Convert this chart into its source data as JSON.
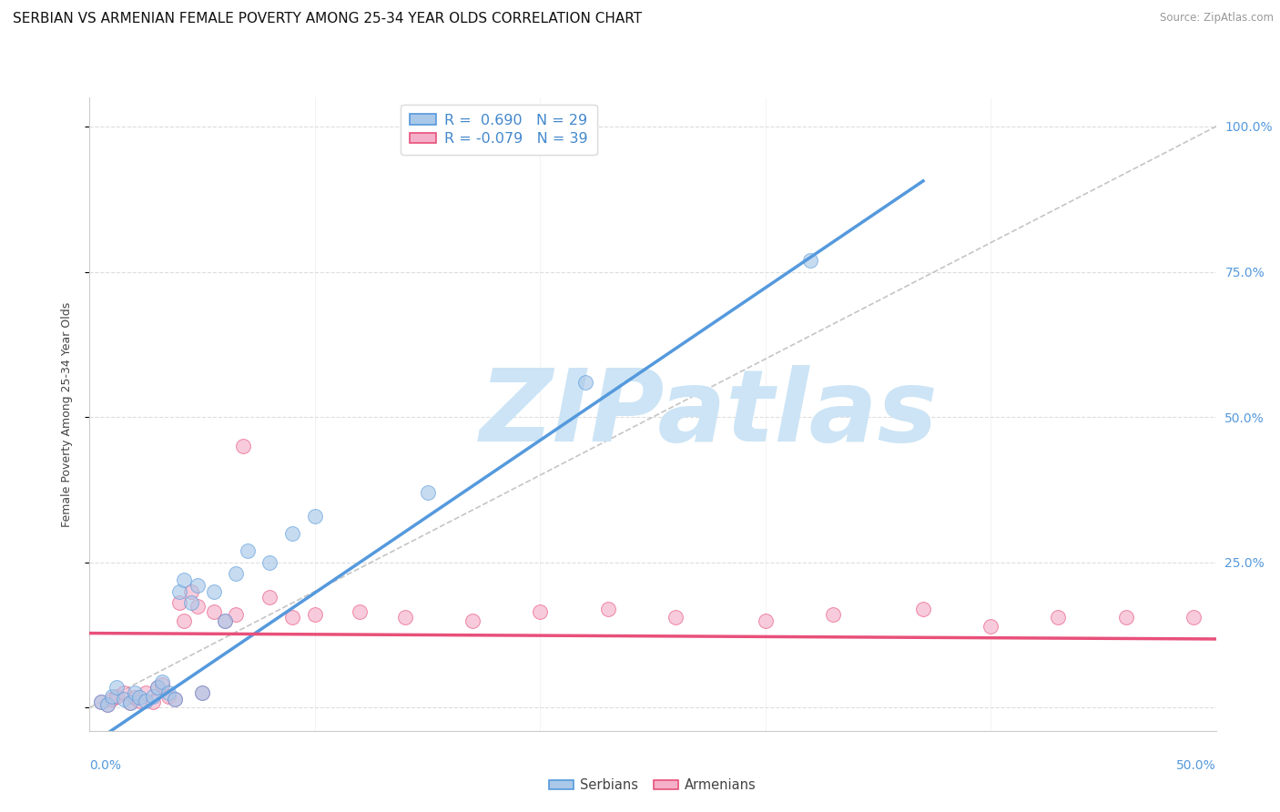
{
  "title": "SERBIAN VS ARMENIAN FEMALE POVERTY AMONG 25-34 YEAR OLDS CORRELATION CHART",
  "source": "Source: ZipAtlas.com",
  "ylabel": "Female Poverty Among 25-34 Year Olds",
  "xlim": [
    0.0,
    0.5
  ],
  "ylim": [
    -0.04,
    1.05
  ],
  "yticks": [
    0.0,
    0.25,
    0.5,
    0.75,
    1.0
  ],
  "ytick_labels": [
    "",
    "25.0%",
    "50.0%",
    "75.0%",
    "100.0%"
  ],
  "serbian_color": "#aac8e8",
  "armenian_color": "#f4b0c8",
  "serbian_line_color": "#5599dd",
  "armenian_line_color": "#e8507a",
  "ref_line_color": "#bbbbbb",
  "watermark_color": "#cce4f5",
  "watermark_text": "ZIPatlas",
  "legend_R_serbian": "0.690",
  "legend_N_serbian": "29",
  "legend_R_armenian": "-0.079",
  "legend_N_armenian": "39",
  "serbian_x": [
    0.005,
    0.008,
    0.01,
    0.012,
    0.015,
    0.018,
    0.02,
    0.022,
    0.025,
    0.028,
    0.03,
    0.032,
    0.035,
    0.038,
    0.04,
    0.042,
    0.045,
    0.048,
    0.05,
    0.055,
    0.06,
    0.065,
    0.07,
    0.08,
    0.09,
    0.1,
    0.15,
    0.22,
    0.32
  ],
  "serbian_y": [
    0.01,
    0.005,
    0.02,
    0.035,
    0.015,
    0.008,
    0.025,
    0.018,
    0.012,
    0.02,
    0.035,
    0.045,
    0.025,
    0.015,
    0.2,
    0.22,
    0.18,
    0.21,
    0.025,
    0.2,
    0.15,
    0.23,
    0.27,
    0.25,
    0.3,
    0.33,
    0.37,
    0.56,
    0.77
  ],
  "armenian_x": [
    0.005,
    0.008,
    0.01,
    0.012,
    0.015,
    0.018,
    0.02,
    0.022,
    0.025,
    0.028,
    0.03,
    0.032,
    0.035,
    0.038,
    0.04,
    0.042,
    0.045,
    0.048,
    0.05,
    0.055,
    0.06,
    0.065,
    0.068,
    0.08,
    0.09,
    0.1,
    0.12,
    0.14,
    0.17,
    0.2,
    0.23,
    0.26,
    0.3,
    0.33,
    0.37,
    0.4,
    0.43,
    0.46,
    0.49
  ],
  "armenian_y": [
    0.01,
    0.005,
    0.015,
    0.02,
    0.025,
    0.008,
    0.018,
    0.012,
    0.025,
    0.01,
    0.035,
    0.04,
    0.02,
    0.015,
    0.18,
    0.15,
    0.2,
    0.175,
    0.025,
    0.165,
    0.15,
    0.16,
    0.45,
    0.19,
    0.155,
    0.16,
    0.165,
    0.155,
    0.15,
    0.165,
    0.17,
    0.155,
    0.15,
    0.16,
    0.17,
    0.14,
    0.155,
    0.155,
    0.155
  ],
  "background_color": "#ffffff",
  "grid_color": "#dddddd",
  "title_fontsize": 11,
  "label_fontsize": 9,
  "tick_fontsize": 10,
  "serbian_line_params": [
    -0.065,
    2.625
  ],
  "armenian_line_params": [
    0.128,
    -0.02
  ]
}
